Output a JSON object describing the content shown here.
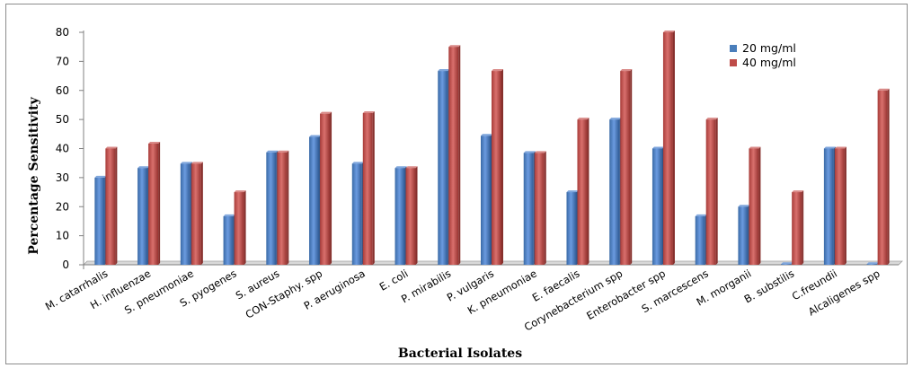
{
  "chart_data": {
    "type": "bar",
    "title": "",
    "xlabel": "Bacterial Isolates",
    "ylabel": "Percentage Sensitivity",
    "ylim": [
      0,
      80
    ],
    "yticks": [
      0,
      10,
      20,
      30,
      40,
      50,
      60,
      70,
      80
    ],
    "legend_position": "top-right",
    "grid": false,
    "categories": [
      "M. catarrhalis",
      "H. influenzae",
      "S. pneumoniae",
      "S. pyogenes",
      "S. aureus",
      "CON-Staphy. spp",
      "P. aeruginosa",
      "E. coli",
      "P. mirabilis",
      "P. vulgaris",
      "K. pneumoniae",
      "E. faecalis",
      "Corynebacterium spp",
      "Enterobacter spp",
      "S. marcescens",
      "M. morganii",
      "B. substilis",
      "C.freundii",
      "Alcaligenes spp"
    ],
    "series": [
      {
        "name": "20 mg/ml",
        "color": "#4a7ebb",
        "values": [
          30,
          33.3,
          34.8,
          16.7,
          38.7,
          44,
          34.8,
          33.3,
          66.7,
          44.4,
          38.5,
          25,
          50,
          40,
          16.7,
          20,
          0,
          40,
          0
        ]
      },
      {
        "name": "40 mg/ml",
        "color": "#be4b48",
        "values": [
          40,
          41.7,
          34.8,
          25,
          38.7,
          52,
          52.2,
          33.3,
          75,
          66.7,
          38.5,
          50,
          66.7,
          80,
          50,
          40,
          25,
          40,
          60
        ]
      }
    ]
  }
}
